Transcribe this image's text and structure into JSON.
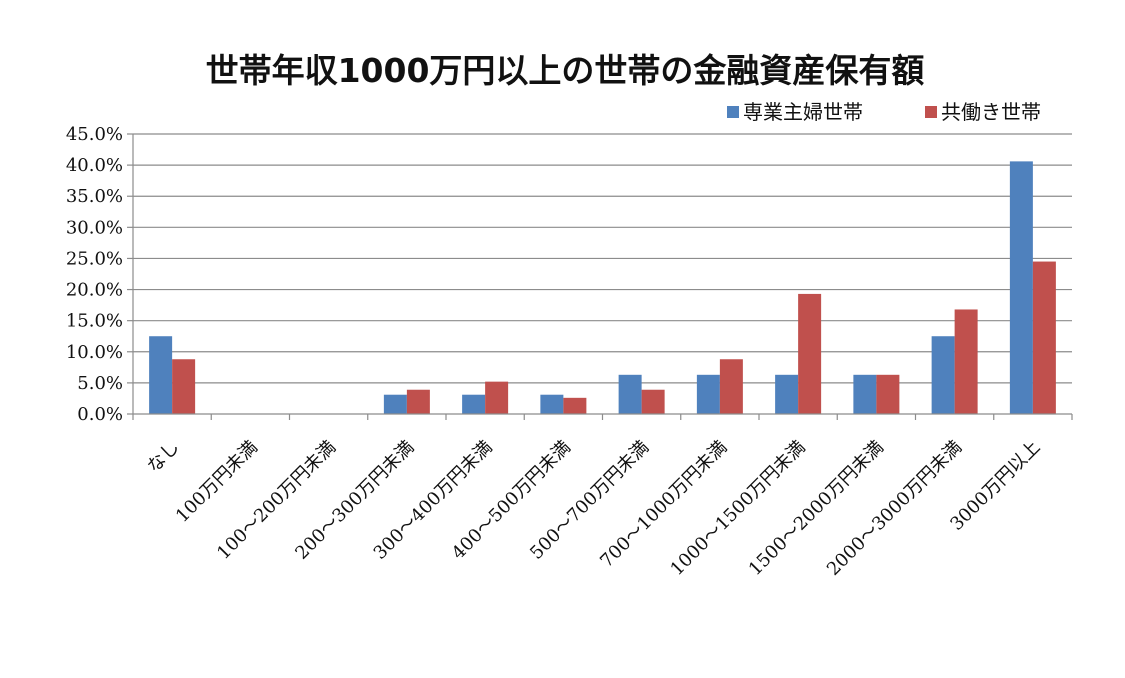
{
  "chart_data": {
    "type": "bar",
    "title": "世帯年収1000万円以上の世帯の金融資産保有額",
    "xlabel": "",
    "ylabel": "",
    "categories": [
      "なし",
      "100万円未満",
      "100～200万円未満",
      "200～300万円未満",
      "300～400万円未満",
      "400～500万円未満",
      "500～700万円未満",
      "700～1000万円未満",
      "1000～1500万円未満",
      "1500～2000万円未満",
      "2000～3000万円未満",
      "3000万円以上"
    ],
    "series": [
      {
        "name": "専業主婦世帯",
        "color": "#4F81BD",
        "values": [
          12.5,
          0,
          0,
          3.1,
          3.1,
          3.1,
          6.3,
          6.3,
          6.3,
          6.3,
          12.5,
          40.6
        ]
      },
      {
        "name": "共働き世帯",
        "color": "#C0504D",
        "values": [
          8.8,
          0,
          0,
          3.9,
          5.2,
          2.6,
          3.9,
          8.8,
          19.3,
          6.3,
          16.8,
          24.5
        ]
      }
    ],
    "ylim": [
      0,
      45
    ],
    "yticks": [
      "0.0%",
      "5.0%",
      "10.0%",
      "15.0%",
      "20.0%",
      "25.0%",
      "30.0%",
      "35.0%",
      "40.0%",
      "45.0%"
    ],
    "ytick_values": [
      0,
      5,
      10,
      15,
      20,
      25,
      30,
      35,
      40,
      45
    ],
    "grid": true,
    "legend_position": "top-right"
  }
}
